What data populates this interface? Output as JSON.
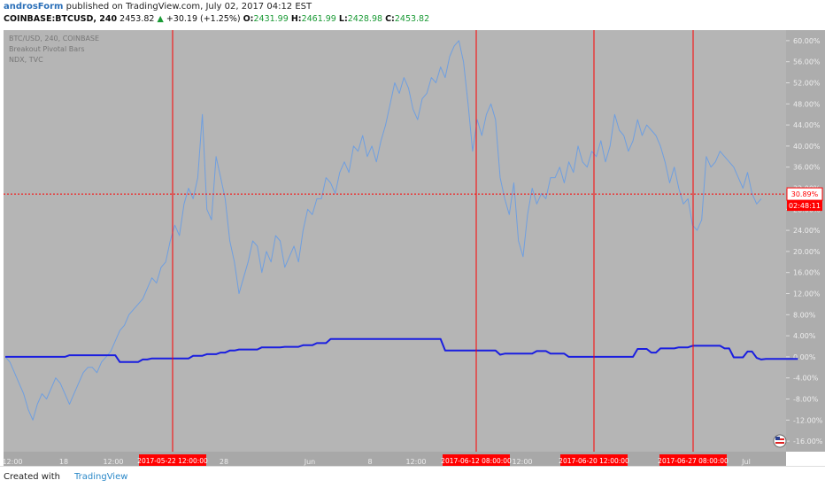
{
  "header": {
    "author": "androsForm",
    "published_text": "published on TradingView.com, July 02, 2017 04:12 EST",
    "symbol": "COINBASE:BTCUSD, 240",
    "price": "2453.82",
    "change_arrow": "▲",
    "change": "+30.19 (+1.25%)",
    "o_label": "O:",
    "o_val": "2431.99",
    "h_label": "H:",
    "h_val": "2461.99",
    "l_label": "L:",
    "l_val": "2428.98",
    "c_label": "C:",
    "c_val": "2453.82"
  },
  "legend": {
    "line1": "BTC/USD, 240, COINBASE",
    "line2": "Breakout Pivotal Bars",
    "line3": "NDX, TVC"
  },
  "footer": {
    "created_with": "Created with",
    "brand": "TradingView"
  },
  "chart_data": {
    "type": "line",
    "y_axis_ticks": [
      "60.00%",
      "56.00%",
      "52.00%",
      "48.00%",
      "44.00%",
      "40.00%",
      "36.00%",
      "32.00%",
      "28.00%",
      "24.00%",
      "20.00%",
      "16.00%",
      "12.00%",
      "8.00%",
      "4.00%",
      "0.00%",
      "-4.00%",
      "-8.00%",
      "-12.00%",
      "-16.00%"
    ],
    "ylim": [
      -18,
      62
    ],
    "x_axis_labels": [
      "12:00",
      "18",
      "12:00",
      "28",
      "Jun",
      "8",
      "12:00",
      "12:00",
      "Jul"
    ],
    "price_label": "30.89%",
    "countdown_label": "02:48:11",
    "current_value": 30.89,
    "markers": [
      "2017-05-22 12:00:00",
      "2017-06-12 08:00:00",
      "2017-06-20 12:00:00",
      "2017-06-27 08:00:00"
    ],
    "colors": {
      "background": "#b5b5b5",
      "btc_line": "#6f9fe0",
      "ndx_line": "#1a1ee0",
      "marker": "#ff0000",
      "label_bg": "#ff0000",
      "axis_text": "#eeeeee"
    },
    "series": [
      {
        "values": [
          0,
          -1,
          -3,
          -5,
          -7,
          -10,
          -12,
          -9,
          -7,
          -8,
          -6,
          -4,
          -5,
          -7,
          -9,
          -7,
          -5,
          -3,
          -2,
          -2,
          -3,
          -1,
          0,
          1,
          3,
          5,
          6,
          8,
          9,
          10,
          11,
          13,
          15,
          14,
          17,
          18,
          22,
          25,
          23,
          29,
          32,
          30,
          34,
          46,
          28,
          26,
          38,
          34,
          30,
          22,
          18,
          12,
          15,
          18,
          22,
          21,
          16,
          20,
          18,
          23,
          22,
          17,
          19,
          21,
          18,
          24,
          28,
          27,
          30,
          30,
          34,
          33,
          31,
          35,
          37,
          35,
          40,
          39,
          42,
          38,
          40,
          37,
          41,
          44,
          48,
          52,
          50,
          53,
          51,
          47,
          45,
          49,
          50,
          53,
          52,
          55,
          53,
          57,
          59,
          60,
          56,
          48,
          39,
          45,
          42,
          46,
          48,
          45,
          34,
          30,
          27,
          33,
          22,
          19,
          27,
          32,
          29,
          31,
          30,
          34,
          34,
          36,
          33,
          37,
          35,
          40,
          37,
          36,
          39,
          38,
          41,
          37,
          40,
          46,
          43,
          42,
          39,
          41,
          45,
          42,
          44,
          43,
          42,
          40,
          37,
          33,
          36,
          32,
          29,
          30,
          25,
          24,
          26,
          38,
          36,
          37,
          39,
          38,
          37,
          36,
          34,
          32,
          35,
          31,
          29,
          30
        ]
      },
      {
        "values": [
          0,
          0,
          0,
          0,
          0,
          0,
          0,
          0,
          0,
          0,
          0,
          0,
          0,
          0,
          0.3,
          0.3,
          0.3,
          0.3,
          0.3,
          0.3,
          0.3,
          0.3,
          0.3,
          0.3,
          0.3,
          -1,
          -1,
          -1,
          -1,
          -1,
          -0.5,
          -0.5,
          -0.3,
          -0.3,
          -0.3,
          -0.3,
          -0.3,
          -0.3,
          -0.3,
          -0.3,
          -0.3,
          0.2,
          0.2,
          0.2,
          0.5,
          0.5,
          0.5,
          0.8,
          0.8,
          1.2,
          1.2,
          1.4,
          1.4,
          1.4,
          1.4,
          1.4,
          1.8,
          1.8,
          1.8,
          1.8,
          1.8,
          1.9,
          1.9,
          1.9,
          1.9,
          2.2,
          2.2,
          2.2,
          2.6,
          2.6,
          2.6,
          3.4,
          3.4,
          3.4,
          3.4,
          3.4,
          3.4,
          3.4,
          3.4,
          3.4,
          3.4,
          3.4,
          3.4,
          3.4,
          3.4,
          3.4,
          3.4,
          3.4,
          3.4,
          3.4,
          3.4,
          3.4,
          3.4,
          3.4,
          3.4,
          3.4,
          1.2,
          1.2,
          1.2,
          1.2,
          1.2,
          1.2,
          1.2,
          1.2,
          1.2,
          1.2,
          1.2,
          1.2,
          0.4,
          0.6,
          0.6,
          0.6,
          0.6,
          0.6,
          0.6,
          0.6,
          1.1,
          1.1,
          1.1,
          0.6,
          0.6,
          0.6,
          0.6,
          0,
          0,
          0,
          0,
          0,
          0,
          0,
          0,
          0,
          0,
          0,
          0,
          0,
          0,
          0,
          1.5,
          1.5,
          1.5,
          0.8,
          0.8,
          1.6,
          1.6,
          1.6,
          1.6,
          1.8,
          1.8,
          1.8,
          2.1,
          2.1,
          2.1,
          2.1,
          2.1,
          2.1,
          2.1,
          1.6,
          1.6,
          -0.1,
          -0.1,
          -0.1,
          1,
          1,
          -0.2,
          -0.5,
          -0.4,
          -0.4,
          -0.4,
          -0.4,
          -0.4,
          -0.4,
          -0.4,
          -0.4
        ]
      }
    ]
  }
}
